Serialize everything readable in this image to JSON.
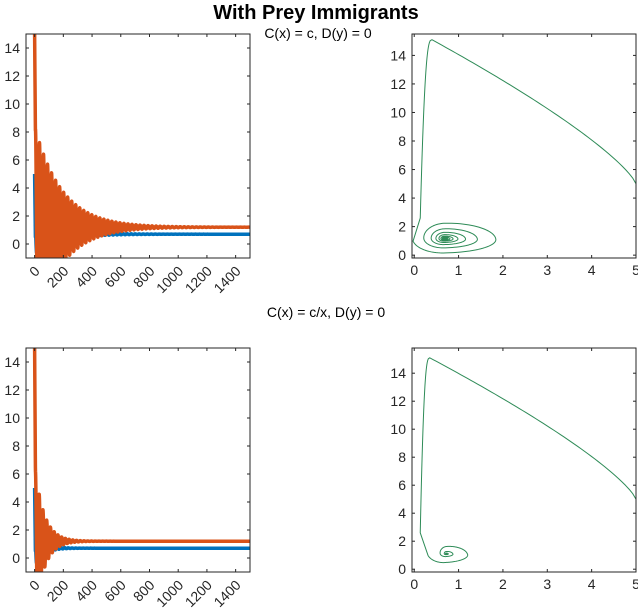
{
  "figure": {
    "title": "With Prey Immigrants",
    "subtitles": [
      "C(x) = c, D(y) = 0",
      "C(x) = c/x, D(y) = 0"
    ]
  },
  "colors": {
    "prey": "#0072BD",
    "predator": "#D95319",
    "phase": "#2E8B57",
    "axis": "#262626"
  },
  "chart_data": [
    {
      "type": "line",
      "title": "",
      "xlabel": "",
      "ylabel": "",
      "xlim": [
        -60,
        1500
      ],
      "ylim": [
        -1,
        15
      ],
      "xticks": [
        0,
        200,
        400,
        600,
        800,
        1000,
        1200,
        1400
      ],
      "yticks": [
        0,
        2,
        4,
        6,
        8,
        10,
        12,
        14
      ],
      "series": [
        {
          "color": "#0072BD",
          "start": 5.0,
          "equilibrium": 0.7,
          "amplitude": 0.7,
          "decay": 170,
          "period": 28
        },
        {
          "color": "#D95319",
          "start": 15.0,
          "equilibrium": 1.2,
          "amplitude": 3.5,
          "decay": 190,
          "period": 28
        }
      ]
    },
    {
      "type": "line",
      "title": "",
      "xlabel": "",
      "ylabel": "",
      "xlim": [
        -0.05,
        5
      ],
      "ylim": [
        -0.2,
        15.5
      ],
      "xticks": [
        0,
        1,
        2,
        3,
        4,
        5
      ],
      "yticks": [
        0,
        2,
        4,
        6,
        8,
        10,
        12,
        14
      ],
      "series": [
        {
          "color": "#2E8B57",
          "start": [
            5,
            5
          ],
          "peak": [
            0.4,
            15.1
          ],
          "equilibrium": [
            0.68,
            1.15
          ],
          "loops": 9
        }
      ]
    },
    {
      "type": "line",
      "title": "",
      "xlabel": "",
      "ylabel": "",
      "xlim": [
        -60,
        1500
      ],
      "ylim": [
        -1,
        15
      ],
      "xticks": [
        0,
        200,
        400,
        600,
        800,
        1000,
        1200,
        1400
      ],
      "yticks": [
        0,
        2,
        4,
        6,
        8,
        10,
        12,
        14
      ],
      "series": [
        {
          "color": "#0072BD",
          "start": 5.0,
          "equilibrium": 0.7,
          "amplitude": 0.6,
          "decay": 60,
          "period": 26
        },
        {
          "color": "#D95319",
          "start": 15.0,
          "equilibrium": 1.2,
          "amplitude": 2.5,
          "decay": 65,
          "period": 26
        }
      ]
    },
    {
      "type": "line",
      "title": "",
      "xlabel": "",
      "ylabel": "",
      "xlim": [
        -0.05,
        5
      ],
      "ylim": [
        -0.2,
        15.8
      ],
      "xticks": [
        0,
        1,
        2,
        3,
        4,
        5
      ],
      "yticks": [
        0,
        2,
        4,
        6,
        8,
        10,
        12,
        14
      ],
      "series": [
        {
          "color": "#2E8B57",
          "start": [
            5,
            5
          ],
          "peak": [
            0.35,
            15.1
          ],
          "equilibrium": [
            0.72,
            1.1
          ],
          "loops": 4
        }
      ]
    }
  ]
}
